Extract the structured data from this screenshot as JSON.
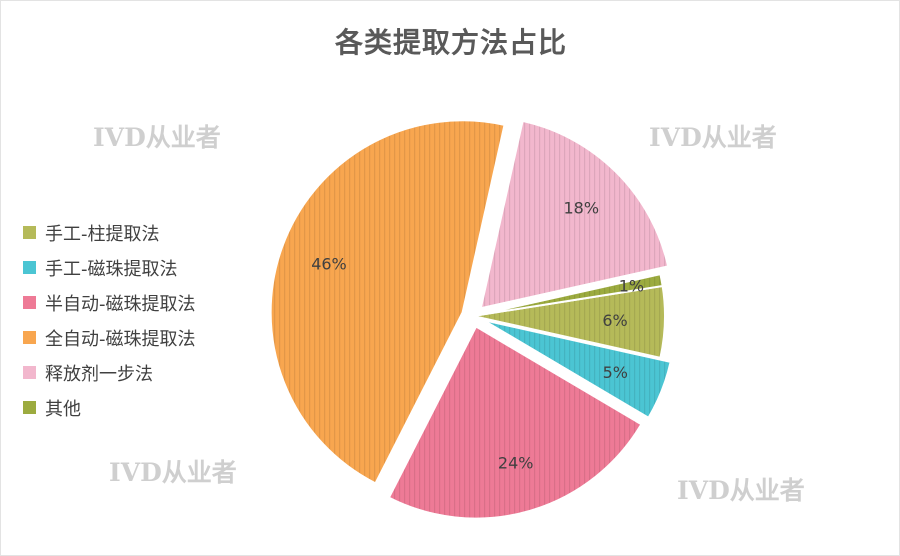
{
  "chart_data": {
    "type": "pie",
    "title": "各类提取方法占比",
    "series": [
      {
        "name": "手工-柱提取法",
        "value": 6,
        "label": "6%",
        "color": "#b5ba59",
        "exploded": false
      },
      {
        "name": "手工-磁珠提取法",
        "value": 5,
        "label": "5%",
        "color": "#4bc5d3",
        "exploded": true
      },
      {
        "name": "半自动-磁珠提取法",
        "value": 24,
        "label": "24%",
        "color": "#ee7a96",
        "exploded": true
      },
      {
        "name": "全自动-磁珠提取法",
        "value": 46,
        "label": "46%",
        "color": "#f8a64f",
        "exploded": true
      },
      {
        "name": "释放剂一步法",
        "value": 18,
        "label": "18%",
        "color": "#f2b7cd",
        "exploded": true
      },
      {
        "name": "其他",
        "value": 1,
        "label": "1%",
        "color": "#9cab3f",
        "exploded": false
      }
    ],
    "legend_position": "left"
  },
  "watermarks": [
    "IVD从业者",
    "IVD从业者",
    "IVD从业者",
    "IVD从业者"
  ]
}
